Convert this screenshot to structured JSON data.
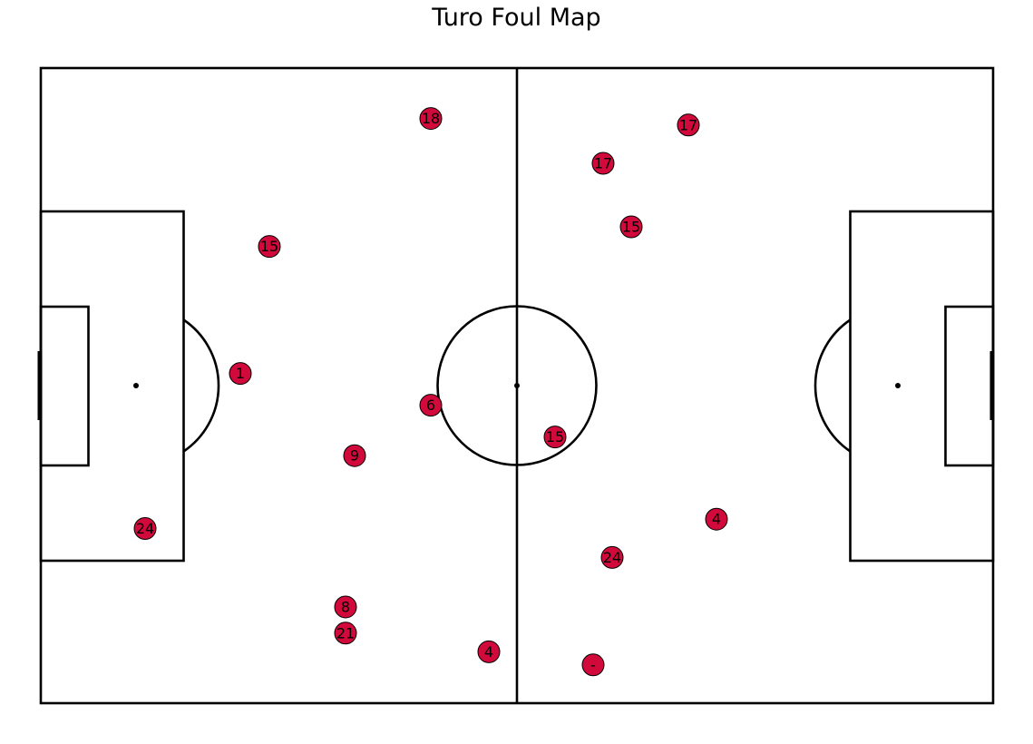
{
  "title": "Turo Foul Map",
  "colors": {
    "marker_fill": "#d20a3c",
    "marker_edge": "#000000",
    "pitch_lines": "#000000",
    "background": "#ffffff"
  },
  "chart_data": {
    "type": "scatter",
    "title": "Turo Foul Map",
    "pitch": {
      "length": 105,
      "width": 68,
      "units": "m"
    },
    "xlim": [
      0,
      105
    ],
    "ylim": [
      0,
      68
    ],
    "grid": false,
    "points": [
      {
        "x": 43.0,
        "y": 62.6,
        "label": "18"
      },
      {
        "x": 71.4,
        "y": 61.9,
        "label": "17"
      },
      {
        "x": 62.0,
        "y": 57.8,
        "label": "17"
      },
      {
        "x": 65.1,
        "y": 51.0,
        "label": "15"
      },
      {
        "x": 25.2,
        "y": 48.9,
        "label": "15"
      },
      {
        "x": 22.0,
        "y": 35.3,
        "label": "1"
      },
      {
        "x": 43.0,
        "y": 31.9,
        "label": "6"
      },
      {
        "x": 56.7,
        "y": 28.5,
        "label": "15"
      },
      {
        "x": 34.6,
        "y": 26.5,
        "label": "9"
      },
      {
        "x": 74.5,
        "y": 19.7,
        "label": "4"
      },
      {
        "x": 11.5,
        "y": 18.7,
        "label": "24"
      },
      {
        "x": 63.0,
        "y": 15.6,
        "label": "24"
      },
      {
        "x": 33.6,
        "y": 10.3,
        "label": "8"
      },
      {
        "x": 33.6,
        "y": 7.5,
        "label": "21"
      },
      {
        "x": 49.4,
        "y": 5.5,
        "label": "4"
      },
      {
        "x": 60.9,
        "y": 4.1,
        "label": "-"
      }
    ]
  }
}
